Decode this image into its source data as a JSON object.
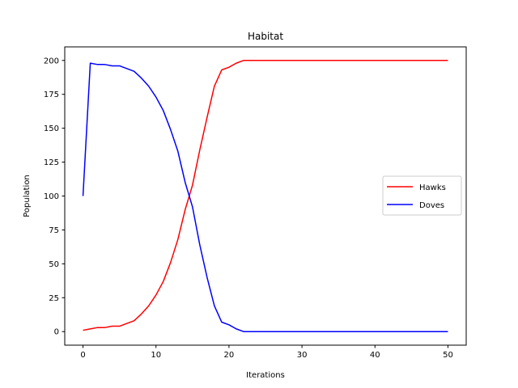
{
  "chart_data": {
    "type": "line",
    "title": "Habitat",
    "xlabel": "Iterations",
    "ylabel": "Population",
    "xlim": [
      -2.5,
      52.5
    ],
    "ylim": [
      -10,
      210
    ],
    "xticks": [
      0,
      10,
      20,
      30,
      40,
      50
    ],
    "yticks": [
      0,
      25,
      50,
      75,
      100,
      125,
      150,
      175,
      200
    ],
    "grid": false,
    "legend_position": "center-right",
    "x": [
      0,
      1,
      2,
      3,
      4,
      5,
      6,
      7,
      8,
      9,
      10,
      11,
      12,
      13,
      14,
      15,
      16,
      17,
      18,
      19,
      20,
      21,
      22,
      23,
      24,
      25,
      26,
      27,
      28,
      29,
      30,
      31,
      32,
      33,
      34,
      35,
      36,
      37,
      38,
      39,
      40,
      41,
      42,
      43,
      44,
      45,
      46,
      47,
      48,
      49,
      50
    ],
    "series": [
      {
        "name": "Hawks",
        "color": "#ff0000",
        "values": [
          1,
          2,
          3,
          3,
          4,
          4,
          6,
          8,
          13,
          19,
          27,
          37,
          51,
          68,
          90,
          108,
          134,
          158,
          181,
          193,
          195,
          198,
          200,
          200,
          200,
          200,
          200,
          200,
          200,
          200,
          200,
          200,
          200,
          200,
          200,
          200,
          200,
          200,
          200,
          200,
          200,
          200,
          200,
          200,
          200,
          200,
          200,
          200,
          200,
          200,
          200
        ]
      },
      {
        "name": "Doves",
        "color": "#0000ff",
        "values": [
          100,
          198,
          197,
          197,
          196,
          196,
          194,
          192,
          187,
          181,
          173,
          163,
          149,
          133,
          110,
          92,
          64,
          40,
          19,
          7,
          5,
          2,
          0,
          0,
          0,
          0,
          0,
          0,
          0,
          0,
          0,
          0,
          0,
          0,
          0,
          0,
          0,
          0,
          0,
          0,
          0,
          0,
          0,
          0,
          0,
          0,
          0,
          0,
          0,
          0,
          0
        ]
      }
    ]
  }
}
